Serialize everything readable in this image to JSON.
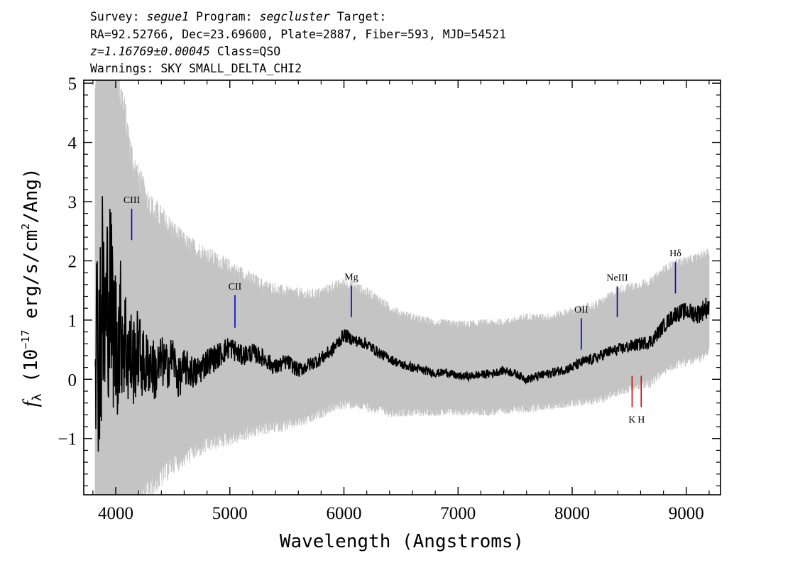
{
  "header": {
    "line1": {
      "pre1": "Survey: ",
      "survey": "segue1",
      "pre2": " Program: ",
      "program": "segcluster",
      "post": " Target:"
    },
    "line2": "RA=92.52766, Dec=23.69600, Plate=2887, Fiber=593, MJD=54521",
    "line3": {
      "z": "z=1.16769±0.00045",
      "cls": " Class=QSO"
    },
    "line4": "Warnings: SKY SMALL_DELTA_CHI2"
  },
  "chart_data": {
    "type": "line",
    "xlabel": "Wavelength (Angstroms)",
    "ylabel": {
      "f": "f",
      "sub": "λ",
      "pre": " (10",
      "sup": "−17",
      "mid": " erg/s/cm",
      "sup2": "2",
      "post": "/Ang)"
    },
    "xlim": [
      3720,
      9300
    ],
    "ylim": [
      -1.95,
      5.05
    ],
    "xticks": [
      4000,
      5000,
      6000,
      7000,
      8000,
      9000
    ],
    "xtick_labels": [
      "4000",
      "5000",
      "6000",
      "7000",
      "8000",
      "9000"
    ],
    "yticks": [
      -1,
      0,
      1,
      2,
      3,
      4,
      5
    ],
    "ytick_labels": [
      "−1",
      "0",
      "1",
      "2",
      "3",
      "4",
      "5"
    ],
    "series": [
      {
        "role": "error",
        "color": "#c4c4c4",
        "x": [
          3820,
          3850,
          3880,
          3910,
          3940,
          3970,
          4000,
          4050,
          4100,
          4150,
          4200,
          4250,
          4300,
          4350,
          4400,
          4450,
          4500,
          4550,
          4600,
          4700,
          4800,
          4900,
          5000,
          5100,
          5200,
          5300,
          5400,
          5500,
          5600,
          5700,
          5800,
          5900,
          6000,
          6100,
          6200,
          6300,
          6400,
          6500,
          6600,
          6700,
          6800,
          6900,
          7000,
          7100,
          7200,
          7300,
          7400,
          7500,
          7600,
          7700,
          7800,
          7900,
          8000,
          8100,
          8200,
          8300,
          8400,
          8500,
          8600,
          8700,
          8800,
          8900,
          9000,
          9100,
          9200
        ],
        "upper": [
          4.6,
          5.2,
          5.2,
          5.2,
          5.2,
          5.2,
          5.0,
          4.6,
          4.0,
          3.5,
          3.2,
          3.0,
          2.8,
          2.7,
          2.6,
          2.5,
          2.4,
          2.3,
          2.2,
          2.1,
          2.0,
          1.9,
          1.8,
          1.7,
          1.6,
          1.5,
          1.45,
          1.4,
          1.38,
          1.36,
          1.4,
          1.5,
          1.55,
          1.5,
          1.4,
          1.3,
          1.15,
          1.05,
          1.0,
          0.95,
          0.9,
          0.9,
          0.88,
          0.88,
          0.9,
          0.9,
          0.92,
          0.95,
          1.0,
          1.0,
          1.0,
          1.05,
          1.1,
          1.15,
          1.2,
          1.3,
          1.45,
          1.5,
          1.55,
          1.6,
          1.8,
          1.9,
          1.95,
          2.0,
          2.1
        ],
        "lower": [
          -2.2,
          -2.2,
          -2.2,
          -2.2,
          -2.2,
          -2.2,
          -2.2,
          -2.2,
          -2.1,
          -2.0,
          -1.9,
          -1.8,
          -1.7,
          -1.6,
          -1.5,
          -1.4,
          -1.3,
          -1.25,
          -1.2,
          -1.1,
          -1.0,
          -0.95,
          -0.9,
          -0.85,
          -0.8,
          -0.75,
          -0.72,
          -0.7,
          -0.65,
          -0.6,
          -0.5,
          -0.4,
          -0.35,
          -0.35,
          -0.4,
          -0.45,
          -0.5,
          -0.5,
          -0.5,
          -0.5,
          -0.5,
          -0.5,
          -0.5,
          -0.5,
          -0.5,
          -0.5,
          -0.48,
          -0.45,
          -0.45,
          -0.42,
          -0.4,
          -0.38,
          -0.35,
          -0.32,
          -0.3,
          -0.25,
          -0.15,
          -0.1,
          -0.05,
          0.0,
          0.2,
          0.3,
          0.35,
          0.4,
          0.5
        ]
      },
      {
        "role": "flux",
        "color": "#000000",
        "x": [
          3820,
          3850,
          3880,
          3910,
          3940,
          3970,
          4000,
          4050,
          4100,
          4150,
          4200,
          4250,
          4300,
          4350,
          4400,
          4450,
          4500,
          4550,
          4600,
          4700,
          4800,
          4900,
          5000,
          5100,
          5200,
          5300,
          5400,
          5500,
          5600,
          5700,
          5800,
          5900,
          6000,
          6100,
          6200,
          6300,
          6400,
          6500,
          6600,
          6700,
          6800,
          6900,
          7000,
          7100,
          7200,
          7300,
          7400,
          7500,
          7600,
          7700,
          7800,
          7900,
          8000,
          8100,
          8200,
          8300,
          8400,
          8500,
          8600,
          8700,
          8800,
          8900,
          9000,
          9100,
          9200
        ],
        "y": [
          0.9,
          0.6,
          1.2,
          0.8,
          1.6,
          1.1,
          0.6,
          0.9,
          0.5,
          0.3,
          0.5,
          0.2,
          0.3,
          0.1,
          0.3,
          0.2,
          0.4,
          0.0,
          0.2,
          0.1,
          0.3,
          0.4,
          0.55,
          0.4,
          0.45,
          0.35,
          0.2,
          0.3,
          0.15,
          0.25,
          0.35,
          0.5,
          0.75,
          0.65,
          0.6,
          0.45,
          0.35,
          0.25,
          0.2,
          0.15,
          0.1,
          0.12,
          0.05,
          0.05,
          0.08,
          0.1,
          0.15,
          0.1,
          0.0,
          0.05,
          0.1,
          0.15,
          0.2,
          0.3,
          0.35,
          0.45,
          0.5,
          0.55,
          0.6,
          0.65,
          0.9,
          1.1,
          1.15,
          1.1,
          1.25
        ],
        "noise_amp": [
          1.6,
          2.0,
          2.2,
          2.0,
          1.8,
          1.6,
          1.4,
          1.2,
          1.0,
          0.8,
          0.7,
          0.6,
          0.55,
          0.5,
          0.45,
          0.4,
          0.38,
          0.35,
          0.32,
          0.28,
          0.25,
          0.22,
          0.2,
          0.18,
          0.16,
          0.15,
          0.14,
          0.13,
          0.13,
          0.12,
          0.12,
          0.12,
          0.12,
          0.1,
          0.1,
          0.09,
          0.08,
          0.08,
          0.08,
          0.07,
          0.07,
          0.07,
          0.07,
          0.07,
          0.07,
          0.07,
          0.07,
          0.07,
          0.07,
          0.08,
          0.08,
          0.08,
          0.09,
          0.09,
          0.1,
          0.1,
          0.1,
          0.11,
          0.11,
          0.12,
          0.13,
          0.14,
          0.15,
          0.17,
          0.2
        ]
      }
    ],
    "emission_lines": [
      {
        "label": "CIII",
        "x": 4140,
        "y0": 2.35,
        "y1": 2.88,
        "color": "#0000cc"
      },
      {
        "label": "CII",
        "x": 5045,
        "y0": 0.87,
        "y1": 1.42,
        "color": "#0000cc"
      },
      {
        "label": "Mg",
        "x": 6065,
        "y0": 1.05,
        "y1": 1.58,
        "color": "#0000cc"
      },
      {
        "label": "OII",
        "x": 8080,
        "y0": 0.5,
        "y1": 1.03,
        "color": "#0000cc"
      },
      {
        "label": "NeIII",
        "x": 8395,
        "y0": 1.05,
        "y1": 1.57,
        "color": "#000080"
      },
      {
        "label": "Hδ",
        "x": 8905,
        "y0": 1.45,
        "y1": 1.98,
        "color": "#0000cc"
      }
    ],
    "absorption_lines": [
      {
        "label": "K",
        "x": 8525,
        "y0": -0.47,
        "y1": 0.06,
        "color": "#cc0000"
      },
      {
        "label": "H",
        "x": 8605,
        "y0": -0.47,
        "y1": 0.06,
        "color": "#cc0000"
      }
    ]
  }
}
